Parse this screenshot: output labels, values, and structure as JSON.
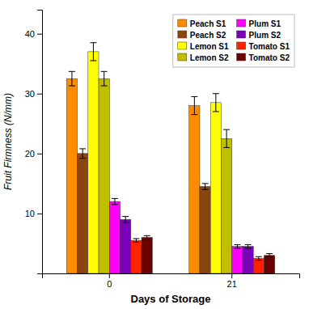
{
  "chart_data": {
    "type": "bar",
    "xlabel": "Days of Storage",
    "ylabel": "Fruit Firmness (N/mm)",
    "categories": [
      "0",
      "21"
    ],
    "series": [
      {
        "name": "Peach S1",
        "color": "#FF8C00",
        "values": [
          32.5,
          28.0
        ],
        "errors": [
          1.2,
          1.5
        ]
      },
      {
        "name": "Peach S2",
        "color": "#8B4513",
        "values": [
          20.0,
          14.5
        ],
        "errors": [
          0.8,
          0.5
        ]
      },
      {
        "name": "Lemon S1",
        "color": "#FFFF00",
        "values": [
          37.0,
          28.5
        ],
        "errors": [
          1.5,
          1.5
        ]
      },
      {
        "name": "Lemon S2",
        "color": "#BFBF00",
        "values": [
          32.5,
          22.5
        ],
        "errors": [
          1.2,
          1.5
        ]
      },
      {
        "name": "Plum S1",
        "color": "#FF00FF",
        "values": [
          12.0,
          4.5
        ],
        "errors": [
          0.5,
          0.3
        ]
      },
      {
        "name": "Plum S2",
        "color": "#7B00BB",
        "values": [
          9.0,
          4.5
        ],
        "errors": [
          0.5,
          0.3
        ]
      },
      {
        "name": "Tomato S1",
        "color": "#FF2200",
        "values": [
          5.5,
          2.5
        ],
        "errors": [
          0.3,
          0.3
        ]
      },
      {
        "name": "Tomato S2",
        "color": "#6B0000",
        "values": [
          6.0,
          3.0
        ],
        "errors": [
          0.3,
          0.3
        ]
      }
    ],
    "ylim": [
      0,
      44
    ],
    "yticks": [
      10,
      20,
      30,
      40
    ],
    "grid": false,
    "legend": "upper right"
  }
}
